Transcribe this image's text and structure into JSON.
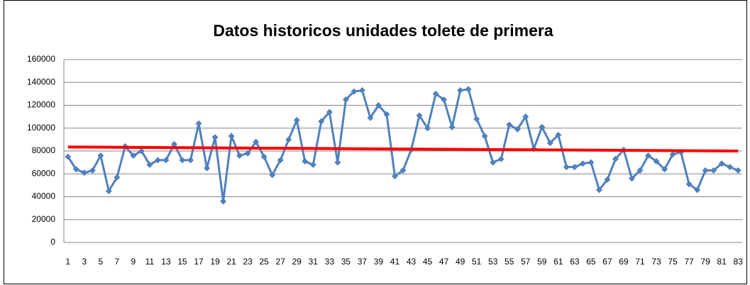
{
  "chart_data": {
    "type": "line",
    "title": "Datos historicos unidades tolete de primera",
    "categories": [
      1,
      null,
      3,
      null,
      5,
      null,
      7,
      null,
      9,
      null,
      11,
      null,
      13,
      null,
      15,
      null,
      17,
      null,
      19,
      null,
      21,
      null,
      23,
      null,
      25,
      null,
      27,
      null,
      29,
      null,
      31,
      null,
      33,
      null,
      35,
      null,
      37,
      null,
      39,
      null,
      41,
      null,
      43,
      null,
      45,
      null,
      47,
      null,
      49,
      null,
      51,
      null,
      53,
      null,
      55,
      null,
      57,
      null,
      59,
      null,
      61,
      null,
      63,
      null,
      65,
      null,
      67,
      null,
      69,
      null,
      71,
      null,
      73,
      null,
      75,
      null,
      77,
      null,
      79,
      null,
      81,
      null,
      83
    ],
    "series": [
      {
        "color": "#4f81bd",
        "values": [
          75000,
          64000,
          61000,
          63000,
          76000,
          45000,
          57000,
          84000,
          76000,
          80000,
          68000,
          72000,
          72000,
          86000,
          72000,
          72000,
          104000,
          65000,
          92000,
          36000,
          93000,
          76000,
          78000,
          88000,
          75000,
          59000,
          72000,
          90000,
          107000,
          71000,
          68000,
          106000,
          114000,
          70000,
          125000,
          132000,
          133000,
          109000,
          120000,
          112000,
          58000,
          63000,
          81000,
          111000,
          100000,
          130000,
          125000,
          101000,
          133000,
          134000,
          108000,
          93000,
          70000,
          73000,
          103000,
          99000,
          110000,
          82000,
          101000,
          87000,
          94000,
          66000,
          66000,
          69000,
          70000,
          46000,
          55000,
          73000,
          81000,
          56000,
          63000,
          76000,
          71000,
          64000,
          77000,
          79000,
          51000,
          46000,
          63000,
          63000,
          69000,
          66000,
          63000
        ]
      }
    ],
    "trendline": {
      "color": "#ff0000",
      "start": 83500,
      "end": 80000
    },
    "ylim": [
      0,
      160000
    ],
    "yticks": [
      0,
      20000,
      40000,
      60000,
      80000,
      100000,
      120000,
      140000,
      160000
    ],
    "grid": true
  }
}
